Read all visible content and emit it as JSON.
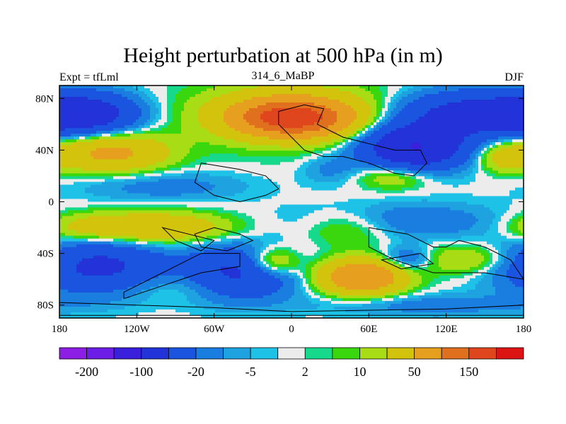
{
  "chart_data": {
    "type": "heatmap",
    "title": "Height perturbation at 500 hPa (in m)",
    "subtitle_left": "Expt = tfLml",
    "subtitle_center": "314_6_MaBP",
    "subtitle_right": "DJF",
    "x_ticks": [
      "180",
      "120W",
      "60W",
      "0",
      "60E",
      "120E",
      "180"
    ],
    "y_ticks": [
      "80N",
      "40N",
      "0",
      "40S",
      "80S"
    ],
    "x_range": [
      -180,
      180
    ],
    "y_range": [
      -90,
      90
    ],
    "colorbar_labels": [
      "-200",
      "-100",
      "-20",
      "-5",
      "2",
      "10",
      "50",
      "150"
    ],
    "levels": [
      -200,
      -150,
      -100,
      -50,
      -20,
      -10,
      -5,
      -2,
      2,
      5,
      10,
      20,
      50,
      100,
      150
    ],
    "colors": [
      "#8c1ee6",
      "#6a1ee6",
      "#3a1fdc",
      "#2233d8",
      "#1a55e0",
      "#1a7de0",
      "#1ea3e0",
      "#1ec2e6",
      "#ececec",
      "#16d98c",
      "#3ad60e",
      "#a8dc14",
      "#d2c30c",
      "#e6a01e",
      "#e0701e",
      "#e0461e",
      "#dc1414"
    ],
    "features": [
      {
        "lon": 0,
        "lat": 65,
        "value": 160,
        "sx": 28,
        "sy": 9
      },
      {
        "lon": 0,
        "lat": 68,
        "value": 45,
        "sx": 50,
        "sy": 16
      },
      {
        "lon": -140,
        "lat": 38,
        "value": 60,
        "sx": 30,
        "sy": 10
      },
      {
        "lon": -160,
        "lat": 68,
        "value": -70,
        "sx": 28,
        "sy": 11
      },
      {
        "lon": 95,
        "lat": 42,
        "value": -100,
        "sx": 28,
        "sy": 12
      },
      {
        "lon": 140,
        "lat": 68,
        "value": -70,
        "sx": 40,
        "sy": 12
      },
      {
        "lon": 165,
        "lat": 35,
        "value": 30,
        "sx": 15,
        "sy": 8
      },
      {
        "lon": 80,
        "lat": 20,
        "value": 25,
        "sx": 20,
        "sy": 7
      },
      {
        "lon": 30,
        "lat": 25,
        "value": -12,
        "sx": 15,
        "sy": 8
      },
      {
        "lon": -100,
        "lat": 12,
        "value": -15,
        "sx": 45,
        "sy": 8
      },
      {
        "lon": 85,
        "lat": -15,
        "value": -20,
        "sx": 55,
        "sy": 10
      },
      {
        "lon": 45,
        "lat": -20,
        "value": 20,
        "sx": 25,
        "sy": 10
      },
      {
        "lon": -110,
        "lat": -20,
        "value": 50,
        "sx": 40,
        "sy": 8
      },
      {
        "lon": -165,
        "lat": -20,
        "value": 15,
        "sx": 20,
        "sy": 8
      },
      {
        "lon": -150,
        "lat": -50,
        "value": -60,
        "sx": 35,
        "sy": 14
      },
      {
        "lon": -40,
        "lat": -55,
        "value": -60,
        "sx": 30,
        "sy": 14
      },
      {
        "lon": -15,
        "lat": -47,
        "value": 45,
        "sx": 15,
        "sy": 8
      },
      {
        "lon": 55,
        "lat": -58,
        "value": 100,
        "sx": 22,
        "sy": 9
      },
      {
        "lon": 90,
        "lat": -45,
        "value": -30,
        "sx": 15,
        "sy": 7
      },
      {
        "lon": 135,
        "lat": -45,
        "value": 25,
        "sx": 30,
        "sy": 8
      },
      {
        "lon": -80,
        "lat": -65,
        "value": 12,
        "sx": 35,
        "sy": 8
      },
      {
        "lon": 110,
        "lat": -80,
        "value": -15,
        "sx": 60,
        "sy": 6
      }
    ]
  }
}
